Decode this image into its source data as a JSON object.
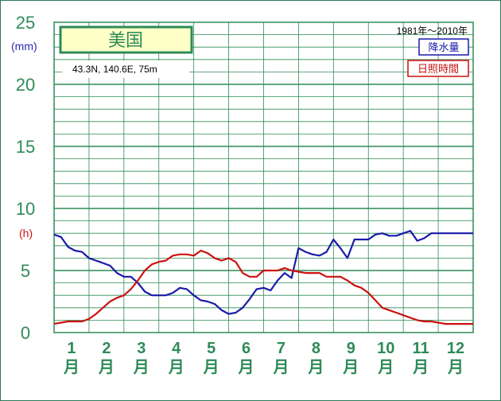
{
  "chart_data": {
    "type": "line",
    "title": "美国",
    "coords": "43.3N,  140.6E,  75m",
    "period": "1981年〜2010年",
    "y_ticks": [
      "0",
      "5",
      "10",
      "15",
      "20",
      "25"
    ],
    "ylim": [
      0,
      25
    ],
    "units": {
      "precip": "(mm)",
      "sun": "(h)"
    },
    "months": [
      {
        "n": "1",
        "m": "月"
      },
      {
        "n": "2",
        "m": "月"
      },
      {
        "n": "3",
        "m": "月"
      },
      {
        "n": "4",
        "m": "月"
      },
      {
        "n": "5",
        "m": "月"
      },
      {
        "n": "6",
        "m": "月"
      },
      {
        "n": "7",
        "m": "月"
      },
      {
        "n": "8",
        "m": "月"
      },
      {
        "n": "9",
        "m": "月"
      },
      {
        "n": "10",
        "m": "月"
      },
      {
        "n": "11",
        "m": "月"
      },
      {
        "n": "12",
        "m": "月"
      }
    ],
    "x_range": [
      0.6,
      12.6
    ],
    "series": [
      {
        "name": "降水量",
        "color": "#1a1aa8",
        "x": [
          0.6,
          0.8,
          1.0,
          1.2,
          1.4,
          1.6,
          1.8,
          2.0,
          2.2,
          2.4,
          2.6,
          2.8,
          3.0,
          3.2,
          3.4,
          3.6,
          3.8,
          4.0,
          4.2,
          4.4,
          4.6,
          4.8,
          5.0,
          5.2,
          5.4,
          5.6,
          5.8,
          6.0,
          6.2,
          6.4,
          6.6,
          6.8,
          7.0,
          7.2,
          7.4,
          7.6,
          7.8,
          8.0,
          8.2,
          8.4,
          8.6,
          8.8,
          9.0,
          9.2,
          9.4,
          9.6,
          9.8,
          10.0,
          10.2,
          10.4,
          10.6,
          10.8,
          11.0,
          11.2,
          11.4,
          11.6,
          11.8,
          12.0,
          12.2,
          12.4,
          12.6
        ],
        "values": [
          7.9,
          7.7,
          6.9,
          6.6,
          6.5,
          6.0,
          5.8,
          5.6,
          5.4,
          4.8,
          4.5,
          4.5,
          4.0,
          3.3,
          3.0,
          3.0,
          3.0,
          3.2,
          3.6,
          3.5,
          3.0,
          2.6,
          2.5,
          2.3,
          1.8,
          1.5,
          1.6,
          2.0,
          2.7,
          3.5,
          3.6,
          3.4,
          4.2,
          4.8,
          4.4,
          6.8,
          6.5,
          6.3,
          6.2,
          6.5,
          7.5,
          6.8,
          6.0,
          7.5,
          7.5,
          7.5,
          7.9,
          8.0,
          7.8,
          7.8,
          8.0,
          8.2,
          7.4,
          7.6,
          8.0,
          8.0,
          8.0,
          8.0,
          8.0,
          8.0,
          8.0
        ]
      },
      {
        "name": "日照時間",
        "color": "#cc1111",
        "x": [
          0.6,
          0.8,
          1.0,
          1.2,
          1.4,
          1.6,
          1.8,
          2.0,
          2.2,
          2.4,
          2.6,
          2.8,
          3.0,
          3.2,
          3.4,
          3.6,
          3.8,
          4.0,
          4.2,
          4.4,
          4.6,
          4.8,
          5.0,
          5.2,
          5.4,
          5.6,
          5.8,
          6.0,
          6.2,
          6.4,
          6.6,
          6.8,
          7.0,
          7.2,
          7.4,
          7.6,
          7.8,
          8.0,
          8.2,
          8.4,
          8.6,
          8.8,
          9.0,
          9.2,
          9.4,
          9.6,
          9.8,
          10.0,
          10.2,
          10.4,
          10.6,
          10.8,
          11.0,
          11.2,
          11.4,
          11.6,
          11.8,
          12.0,
          12.2,
          12.4,
          12.6
        ],
        "values": [
          0.7,
          0.8,
          0.9,
          0.9,
          0.9,
          1.1,
          1.5,
          2.0,
          2.5,
          2.8,
          3.0,
          3.5,
          4.2,
          5.0,
          5.5,
          5.7,
          5.8,
          6.2,
          6.3,
          6.3,
          6.2,
          6.6,
          6.4,
          6.0,
          5.8,
          6.0,
          5.7,
          4.8,
          4.5,
          4.5,
          5.0,
          5.0,
          5.0,
          5.2,
          5.0,
          4.9,
          4.8,
          4.8,
          4.8,
          4.5,
          4.5,
          4.5,
          4.2,
          3.8,
          3.6,
          3.2,
          2.6,
          2.0,
          1.8,
          1.6,
          1.4,
          1.2,
          1.0,
          0.9,
          0.9,
          0.8,
          0.7,
          0.7,
          0.7,
          0.7,
          0.7
        ]
      }
    ]
  }
}
